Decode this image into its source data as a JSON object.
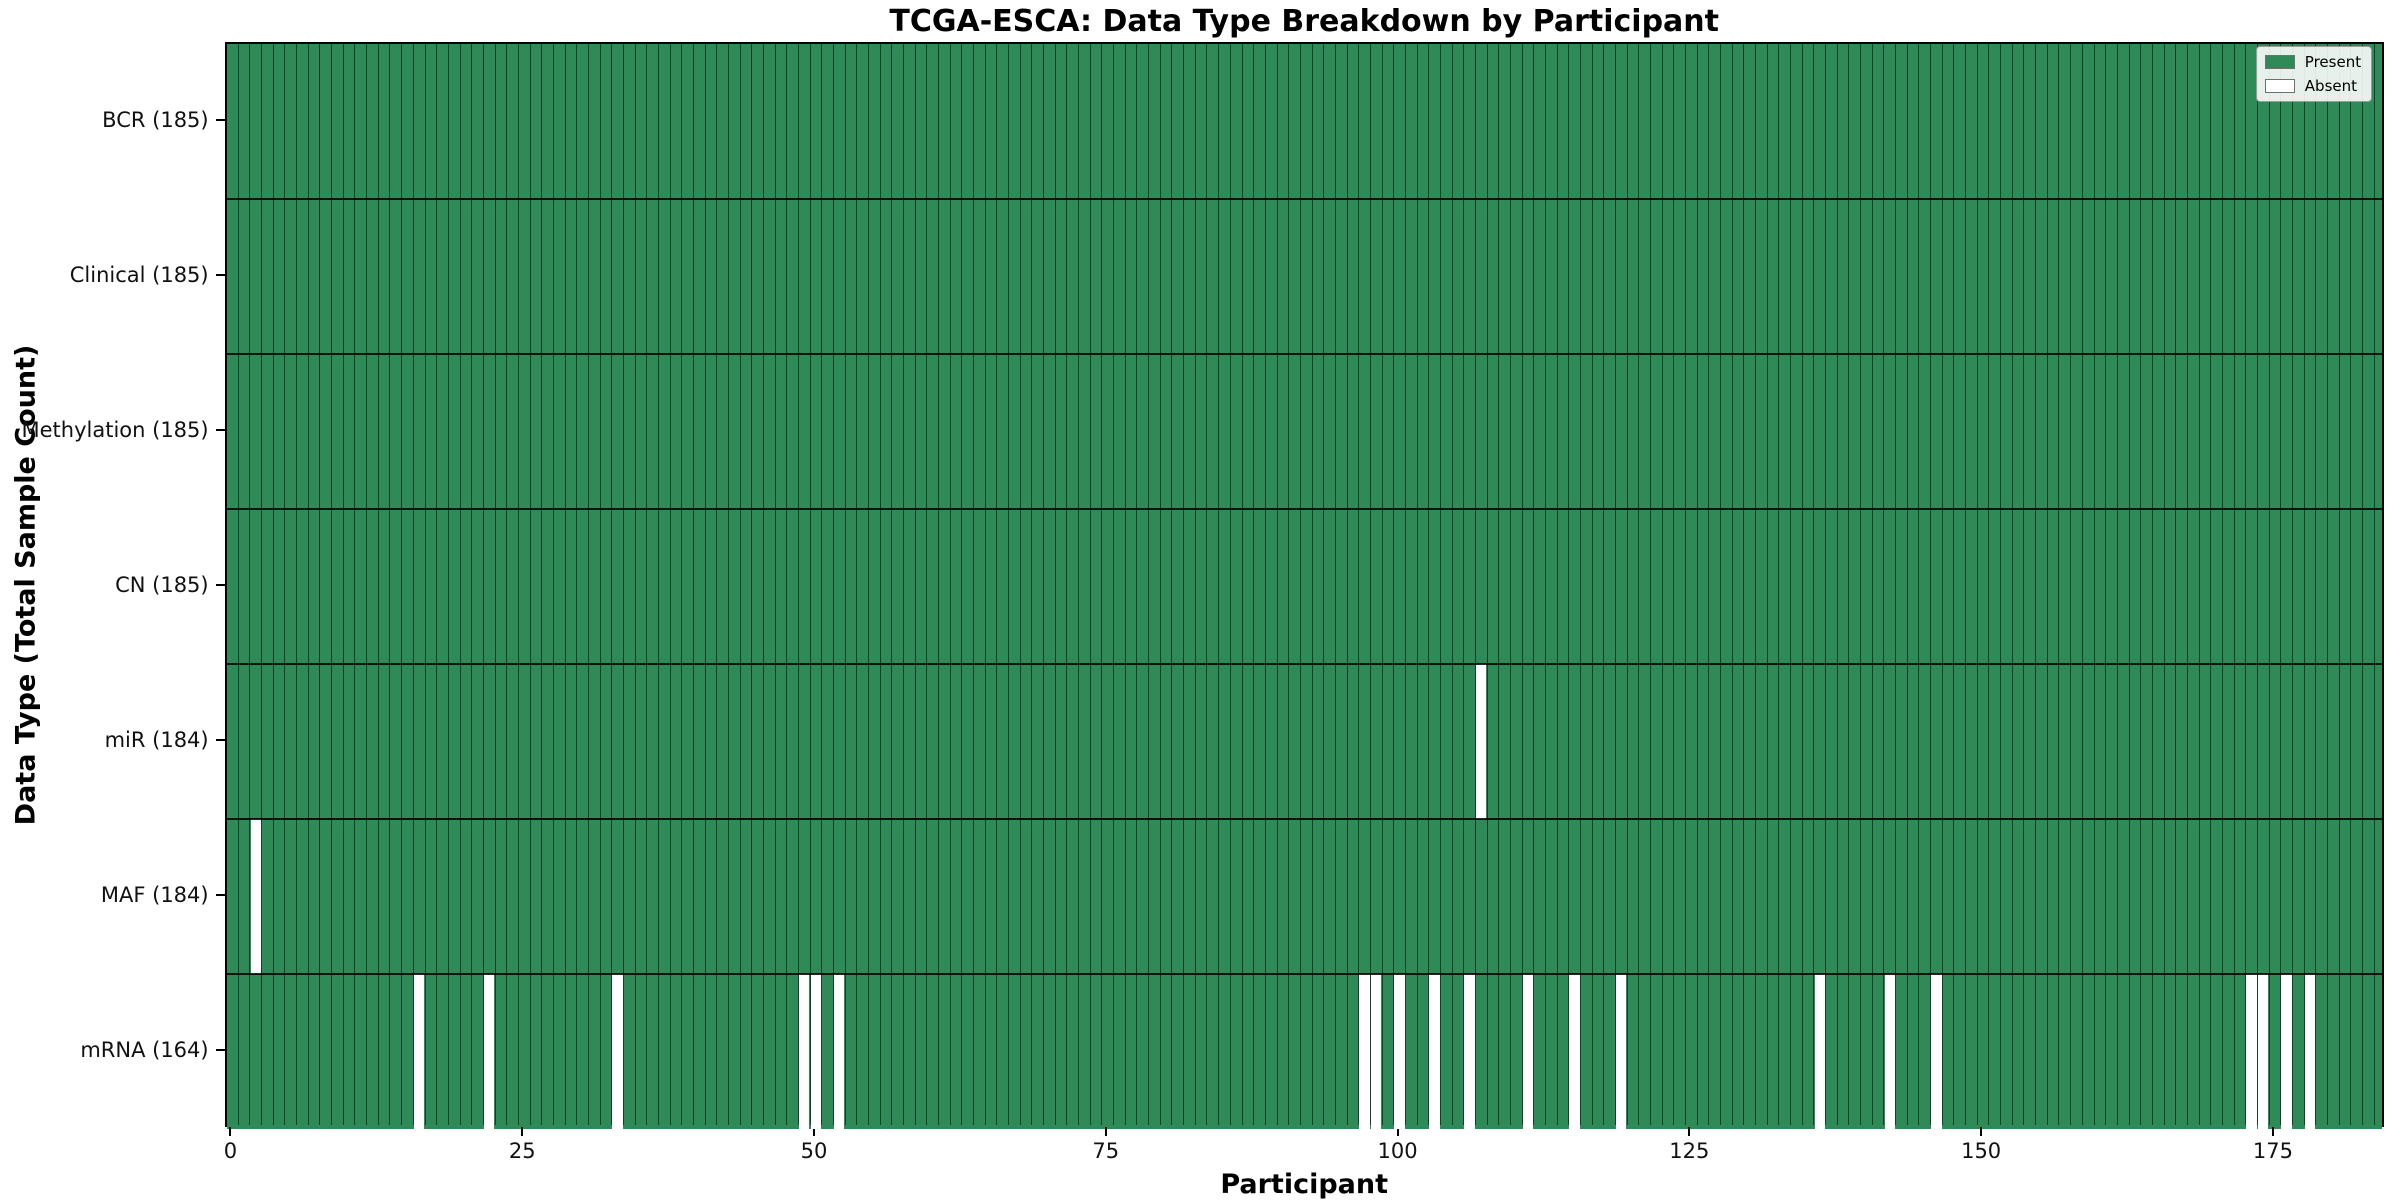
{
  "title": "TCGA-ESCA: Data Type Breakdown by Participant",
  "xlabel": "Participant",
  "ylabel": "Data Type (Total Sample Count)",
  "legend": {
    "present_label": "Present",
    "absent_label": "Absent"
  },
  "colors": {
    "present": "#2e8b57",
    "absent": "#ffffff",
    "cell_edge": "rgba(0,0,0,0.55)",
    "row_separator": "rgba(0,0,0,0.85)"
  },
  "chart_data": {
    "type": "heatmap",
    "title": "TCGA-ESCA: Data Type Breakdown by Participant",
    "xlabel": "Participant",
    "ylabel": "Data Type (Total Sample Count)",
    "legend_entries": [
      "Present",
      "Absent"
    ],
    "legend_position": "upper right",
    "grid": "cell edges drawn",
    "n_participants": 185,
    "x_range": [
      -0.5,
      184.5
    ],
    "x_ticks": [
      0,
      25,
      50,
      75,
      100,
      125,
      150,
      175
    ],
    "value_encoding": {
      "present": 1,
      "absent": 0
    },
    "rows": [
      {
        "label": "BCR (185)",
        "data_type": "BCR",
        "total_sample_count": 185,
        "absent_participants": []
      },
      {
        "label": "Clinical (185)",
        "data_type": "Clinical",
        "total_sample_count": 185,
        "absent_participants": []
      },
      {
        "label": "Methylation (185)",
        "data_type": "Methylation",
        "total_sample_count": 185,
        "absent_participants": []
      },
      {
        "label": "CN (185)",
        "data_type": "CN",
        "total_sample_count": 185,
        "absent_participants": []
      },
      {
        "label": "miR (184)",
        "data_type": "miR",
        "total_sample_count": 184,
        "absent_participants": [
          107
        ]
      },
      {
        "label": "MAF (184)",
        "data_type": "MAF",
        "total_sample_count": 184,
        "absent_participants": [
          2
        ]
      },
      {
        "label": "mRNA (164)",
        "data_type": "mRNA",
        "total_sample_count": 164,
        "absent_participants": [
          16,
          22,
          33,
          49,
          50,
          52,
          97,
          98,
          100,
          103,
          106,
          111,
          115,
          119,
          136,
          142,
          146,
          173,
          174,
          176,
          178
        ]
      }
    ]
  }
}
